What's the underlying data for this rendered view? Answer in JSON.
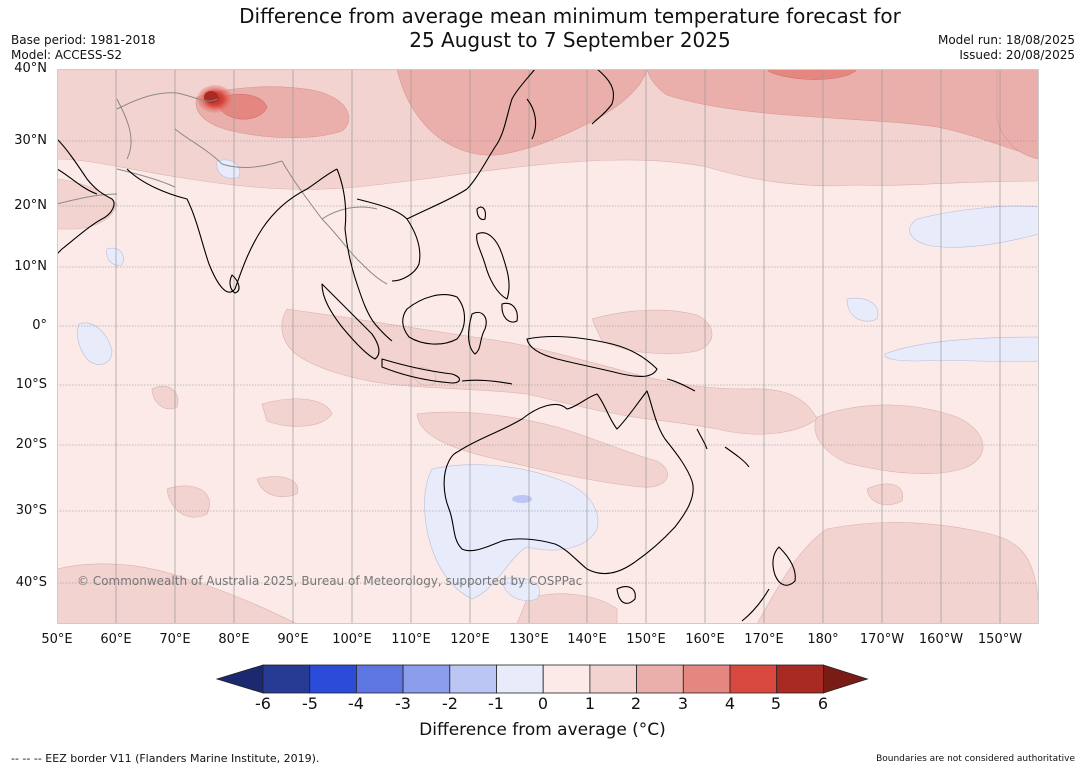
{
  "header": {
    "title_line1": "Difference from average mean minimum temperature forecast for",
    "title_line2": "25 August to 7 September 2025",
    "base_period": "Base period: 1981-2018",
    "model": "Model: ACCESS-S2",
    "model_run": "Model run: 18/08/2025",
    "issued": "Issued: 20/08/2025"
  },
  "map": {
    "copyright": "© Commonwealth of Australia 2025, Bureau of Meteorology, supported by COSPPac",
    "lat_labels": [
      "40°N",
      "30°N",
      "20°N",
      "10°N",
      "0°",
      "10°S",
      "20°S",
      "30°S",
      "40°S"
    ],
    "lon_labels": [
      "50°E",
      "60°E",
      "70°E",
      "80°E",
      "90°E",
      "100°E",
      "110°E",
      "120°E",
      "130°E",
      "140°E",
      "150°E",
      "160°E",
      "170°E",
      "180°",
      "170°W",
      "160°W",
      "150°W"
    ],
    "colors": {
      "ocean_base": "#fbeae8",
      "warm_1_2": "#f3d3d0",
      "warm_2_3": "#ebafab",
      "warm_3_4": "#e58781",
      "warm_4_5": "#d9483e",
      "cool_0_1": "#e7ebfa",
      "coast": "#000000",
      "border": "#888888"
    }
  },
  "colorbar": {
    "ticks": [
      "-6",
      "-5",
      "-4",
      "-3",
      "-2",
      "-1",
      "0",
      "1",
      "2",
      "3",
      "4",
      "5",
      "6"
    ],
    "colors": [
      "#273a94",
      "#2a4cd9",
      "#5e76e2",
      "#8c9eeb",
      "#bcc6f4",
      "#e7ebfa",
      "#fbeae8",
      "#f3d3d0",
      "#ebafab",
      "#e58781",
      "#d9483e",
      "#a82a23"
    ],
    "under_color": "#1b2a70",
    "over_color": "#7a1c16",
    "label": "Difference from average (°C)"
  },
  "footer": {
    "eez_note": "--  --  -- EEZ border V11 (Flanders Marine Institute, 2019).",
    "boundaries_note": "Boundaries are not considered authoritative"
  }
}
